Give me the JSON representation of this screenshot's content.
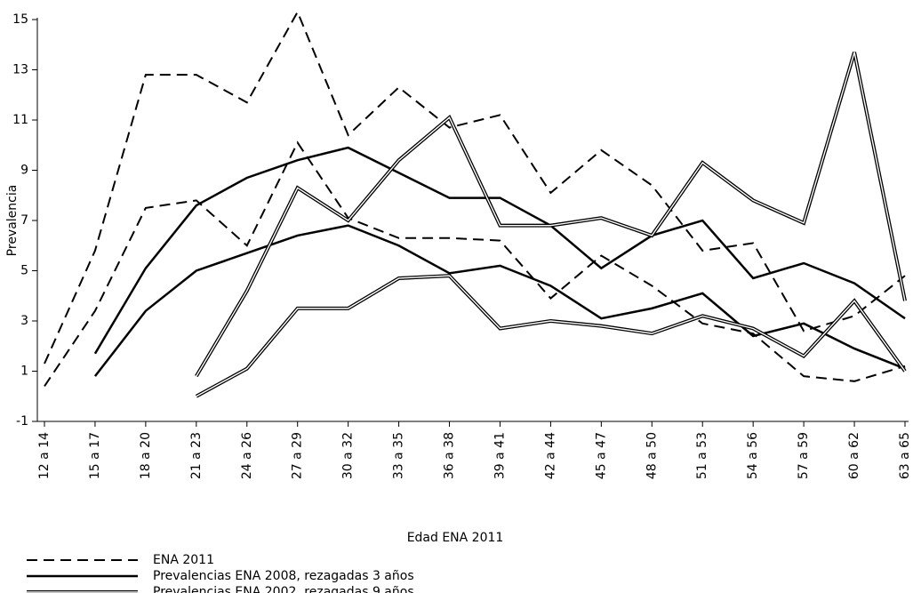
{
  "chart_data": {
    "type": "line",
    "xlabel": "Edad ENA 2011",
    "ylabel": "Prevalencia",
    "categories": [
      "12 a 14",
      "15 a 17",
      "18 a 20",
      "21 a 23",
      "24 a 26",
      "27 a 29",
      "30 a 32",
      "33 a 35",
      "36 a 38",
      "39 a 41",
      "42 a 44",
      "45 a 47",
      "48 a 50",
      "51 a 53",
      "54 a 56",
      "57 a 59",
      "60 a 62",
      "63 a 65"
    ],
    "ylim": [
      -1,
      15
    ],
    "yticks": [
      -1,
      1,
      3,
      5,
      7,
      9,
      11,
      13,
      15
    ],
    "series": [
      {
        "name": "ENA 2011",
        "color": "#000000",
        "style": "dashed",
        "values": [
          1.3,
          5.8,
          12.8,
          12.8,
          11.7,
          15.3,
          10.4,
          12.3,
          10.7,
          11.2,
          8.1,
          9.8,
          8.4,
          5.8,
          6.1,
          2.6,
          3.2,
          4.8
        ]
      },
      {
        "color": "#000000",
        "style": "dashed",
        "values": [
          0.4,
          3.4,
          7.5,
          7.8,
          6.0,
          10.1,
          7.1,
          6.3,
          6.3,
          6.2,
          3.9,
          5.6,
          4.4,
          2.9,
          2.5,
          0.8,
          0.6,
          1.2
        ]
      },
      {
        "name": "Prevalencias ENA 2008, rezagadas 3 años",
        "color": "#000000",
        "style": "solid",
        "values": [
          null,
          1.7,
          5.1,
          7.6,
          8.7,
          9.4,
          9.9,
          8.9,
          7.9,
          7.9,
          6.8,
          5.1,
          6.4,
          7.0,
          4.7,
          5.3,
          4.5,
          3.1
        ]
      },
      {
        "color": "#000000",
        "style": "solid",
        "values": [
          null,
          0.8,
          3.4,
          5.0,
          5.7,
          6.4,
          6.8,
          6.0,
          4.9,
          5.2,
          4.4,
          3.1,
          3.5,
          4.1,
          2.4,
          2.9,
          1.9,
          1.1
        ]
      },
      {
        "name": "Prevalencias ENA 2002, rezagadas 9 años",
        "color": "#000000",
        "style": "double",
        "values": [
          null,
          null,
          null,
          0.8,
          4.2,
          8.3,
          7.0,
          9.4,
          11.1,
          6.8,
          6.8,
          7.1,
          6.4,
          9.3,
          7.8,
          6.9,
          13.7,
          3.8
        ]
      },
      {
        "color": "#000000",
        "style": "double",
        "values": [
          null,
          null,
          null,
          0.0,
          1.1,
          3.5,
          3.5,
          4.7,
          4.8,
          2.7,
          3.0,
          2.8,
          2.5,
          3.2,
          2.7,
          1.6,
          3.8,
          1.0
        ]
      }
    ]
  }
}
